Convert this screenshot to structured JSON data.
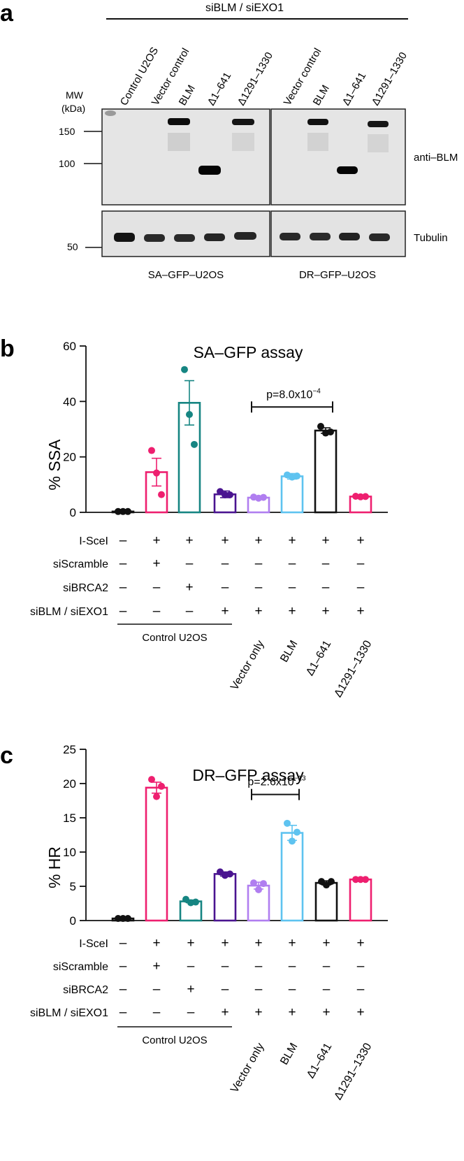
{
  "panel_a": {
    "letter": "a",
    "top_label": "siBLM / siEXO1",
    "lane_labels": [
      "Control U2OS",
      "Vector control",
      "BLM",
      "Δ1–641",
      "Δ1291–1330",
      "Vector control",
      "BLM",
      "Δ1–641",
      "Δ1291–1330"
    ],
    "mw_title_1": "MW",
    "mw_title_2": "(kDa)",
    "mw_markers": [
      "150",
      "100",
      "50"
    ],
    "blot_label_top": "anti–BLM",
    "blot_label_bottom": "Tubulin",
    "cell_lines": [
      "SA–GFP–U2OS",
      "DR–GFP–U2OS"
    ]
  },
  "colors": {
    "black": "#111111",
    "magenta": "#ee1f6f",
    "teal": "#168582",
    "purple": "#4a1490",
    "lavender": "#b07ef0",
    "skyblue": "#5ec3f0"
  },
  "row_labels": [
    "I-SceI",
    "siScramble",
    "siBRCA2",
    "siBLM / siEXO1"
  ],
  "condition_table": [
    [
      "–",
      "+",
      "+",
      "+",
      "+",
      "+",
      "+",
      "+"
    ],
    [
      "–",
      "+",
      "–",
      "–",
      "–",
      "–",
      "–",
      "–"
    ],
    [
      "–",
      "–",
      "+",
      "–",
      "–",
      "–",
      "–",
      "–"
    ],
    [
      "–",
      "–",
      "–",
      "+",
      "+",
      "+",
      "+",
      "+"
    ]
  ],
  "group_label": "Control U2OS",
  "construct_labels": [
    "Vector only",
    "BLM",
    "Δ1–641",
    "Δ1291–1330"
  ],
  "chart_data": [
    {
      "letter": "b",
      "type": "bar",
      "title": "SA–GFP assay",
      "ylabel": "% SSA",
      "ylim": [
        0,
        60
      ],
      "yticks": [
        0,
        20,
        40,
        60
      ],
      "categories": [
        "Control I-SceI–",
        "siScramble",
        "siBRCA2",
        "siBLM/siEXO1",
        "Vector only",
        "BLM",
        "Δ1–641",
        "Δ1291–1330"
      ],
      "values": [
        0.3,
        14.5,
        39.5,
        6.5,
        5.3,
        13.0,
        29.5,
        5.7
      ],
      "errors": [
        0.2,
        5,
        8,
        1.2,
        0.4,
        1,
        1,
        0.3
      ],
      "points": [
        [
          0.3,
          0.3,
          0.3
        ],
        [
          22.3,
          14.2,
          6.4
        ],
        [
          51.5,
          35.3,
          24.5
        ],
        [
          7.5,
          6.3,
          6.3
        ],
        [
          5.5,
          5.1,
          5.4
        ],
        [
          13.5,
          12.7,
          13.1
        ],
        [
          31.0,
          28.6,
          29.0
        ],
        [
          5.8,
          5.6,
          5.7
        ]
      ],
      "bar_colors": [
        "black",
        "magenta",
        "teal",
        "purple",
        "lavender",
        "skyblue",
        "black",
        "magenta"
      ],
      "annotation": {
        "text": "p=8.0x10",
        "exponent": "−4",
        "from": 4,
        "to": 6,
        "y": 38
      }
    },
    {
      "letter": "c",
      "type": "bar",
      "title": "DR–GFP assay",
      "ylabel": "% HR",
      "ylim": [
        0,
        25
      ],
      "yticks": [
        0,
        5,
        10,
        15,
        20,
        25
      ],
      "categories": [
        "Control I-SceI–",
        "siScramble",
        "siBRCA2",
        "siBLM/siEXO1",
        "Vector only",
        "BLM",
        "Δ1–641",
        "Δ1291–1330"
      ],
      "values": [
        0.3,
        19.4,
        2.8,
        6.8,
        5.1,
        12.8,
        5.5,
        6.0
      ],
      "errors": [
        0.1,
        0.8,
        0.2,
        0.3,
        0.5,
        1.1,
        0.3,
        0.1
      ],
      "points": [
        [
          0.3,
          0.3,
          0.3
        ],
        [
          20.6,
          18.1,
          19.6
        ],
        [
          3.1,
          2.6,
          2.7
        ],
        [
          7.1,
          6.6,
          6.8
        ],
        [
          5.5,
          4.5,
          5.4
        ],
        [
          14.2,
          11.6,
          12.9
        ],
        [
          5.7,
          5.2,
          5.7
        ],
        [
          6.0,
          6.0,
          6.0
        ]
      ],
      "bar_colors": [
        "black",
        "magenta",
        "teal",
        "purple",
        "lavender",
        "skyblue",
        "black",
        "magenta"
      ],
      "annotation": {
        "text": "p=2.6x10",
        "exponent": "−13",
        "from": 4,
        "to": 5,
        "y": 18.4
      }
    }
  ]
}
